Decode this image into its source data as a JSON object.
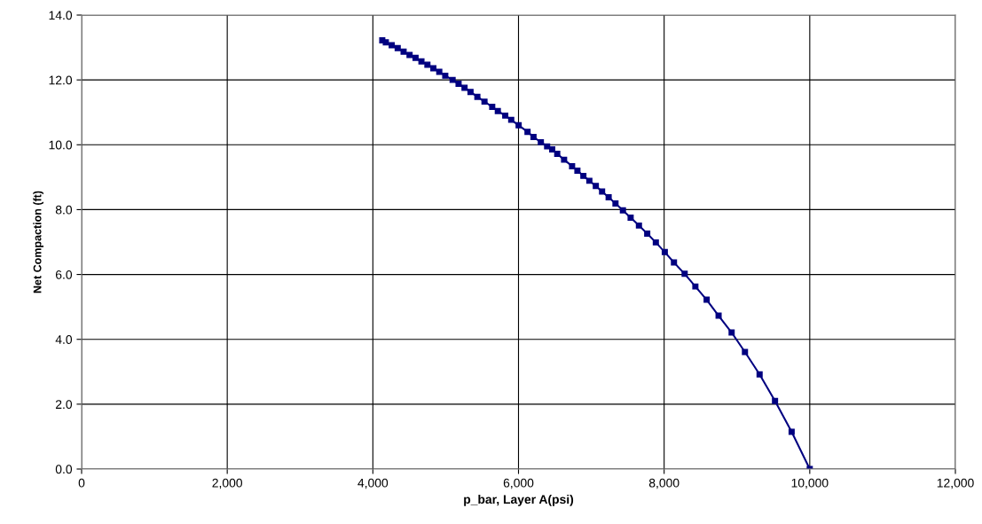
{
  "chart_data": {
    "type": "line",
    "xlabel": "p_bar, Layer A(psi)",
    "ylabel": "Net Compaction (ft)",
    "marker": "square",
    "line_style": "solid",
    "grid": true,
    "x": [
      4129,
      4178,
      4259,
      4341,
      4422,
      4504,
      4586,
      4667,
      4749,
      4831,
      4912,
      4994,
      5095,
      5177,
      5259,
      5341,
      5435,
      5533,
      5639,
      5716,
      5818,
      5900,
      6002,
      6124,
      6206,
      6307,
      6393,
      6463,
      6532,
      6626,
      6736,
      6809,
      6891,
      6973,
      7062,
      7148,
      7238,
      7332,
      7434,
      7540,
      7654,
      7768,
      7886,
      8009,
      8135,
      8282,
      8429,
      8584,
      8748,
      8927,
      9110,
      9311,
      9523,
      9751,
      10000
    ],
    "series": [
      {
        "color": "#000080",
        "values": [
          13.22,
          13.16,
          13.07,
          12.98,
          12.87,
          12.77,
          12.68,
          12.57,
          12.47,
          12.36,
          12.25,
          12.13,
          12.0,
          11.88,
          11.76,
          11.63,
          11.48,
          11.33,
          11.17,
          11.04,
          10.9,
          10.77,
          10.6,
          10.4,
          10.24,
          10.08,
          9.95,
          9.86,
          9.72,
          9.54,
          9.34,
          9.2,
          9.04,
          8.89,
          8.73,
          8.56,
          8.38,
          8.19,
          7.98,
          7.75,
          7.51,
          7.26,
          6.99,
          6.69,
          6.37,
          6.02,
          5.63,
          5.22,
          4.73,
          4.21,
          3.61,
          2.92,
          2.1,
          1.15,
          0
        ]
      }
    ],
    "xlim": [
      0,
      12000
    ],
    "xticks": [
      0,
      {
        "value": 2000,
        "label": "2,000"
      },
      {
        "value": 4000,
        "label": "4,000"
      },
      {
        "value": 6000,
        "label": "6,000"
      },
      {
        "value": 8000,
        "label": "8,000"
      },
      {
        "value": 10000,
        "label": "10,000"
      },
      {
        "value": 12000,
        "label": "12,000"
      }
    ],
    "ylim": [
      0,
      14
    ],
    "yticks": [
      {
        "value": 0,
        "label": "0.0"
      },
      {
        "value": 2,
        "label": "2.0"
      },
      {
        "value": 4,
        "label": "4.0"
      },
      {
        "value": 6,
        "label": "6.0"
      },
      {
        "value": 8,
        "label": "8.0"
      },
      {
        "value": 10,
        "label": "10.0"
      },
      {
        "value": 12,
        "label": "12.0"
      },
      {
        "value": 14,
        "label": "14.0"
      }
    ]
  }
}
